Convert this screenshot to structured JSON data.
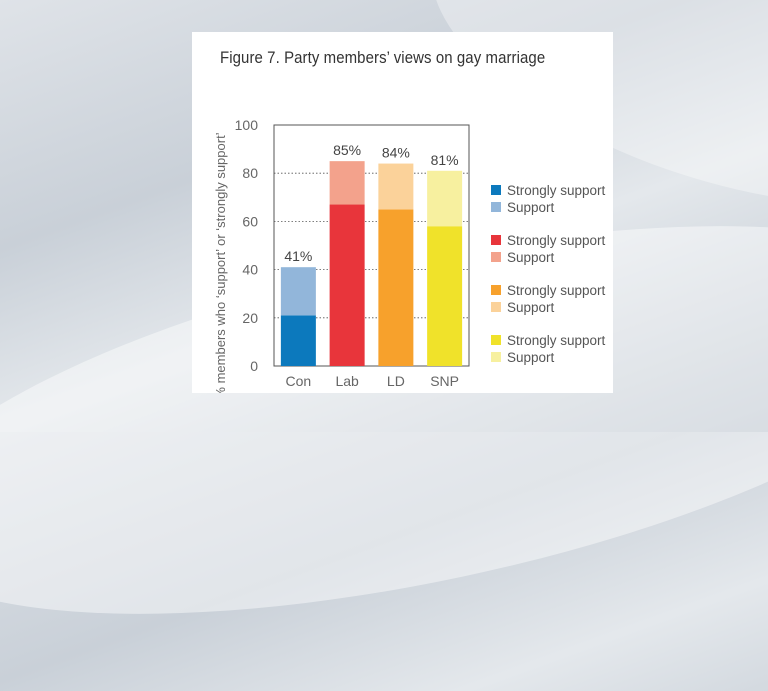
{
  "figure": {
    "title": "Figure 7.  Party members’ views on gay marriage"
  },
  "chart_data": {
    "type": "bar",
    "stacked": true,
    "categories": [
      "Con",
      "Lab",
      "LD",
      "SNP"
    ],
    "ylabel": "% members who ‘support’ or ‘strongly support’",
    "ylim": [
      0,
      100
    ],
    "yticks": [
      0,
      20,
      40,
      60,
      80,
      100
    ],
    "grid": true,
    "totals_labels": [
      "41%",
      "85%",
      "84%",
      "81%"
    ],
    "bars": [
      {
        "category": "Con",
        "strongly_support": 21,
        "support": 20,
        "total": 41,
        "colors": {
          "strongly": "#0c79bd",
          "support": "#92b6da"
        }
      },
      {
        "category": "Lab",
        "strongly_support": 67,
        "support": 18,
        "total": 85,
        "colors": {
          "strongly": "#e8353b",
          "support": "#f3a28c"
        }
      },
      {
        "category": "LD",
        "strongly_support": 65,
        "support": 19,
        "total": 84,
        "colors": {
          "strongly": "#f7a12c",
          "support": "#fbd29a"
        }
      },
      {
        "category": "SNP",
        "strongly_support": 58,
        "support": 23,
        "total": 81,
        "colors": {
          "strongly": "#f0e22a",
          "support": "#f7f09f"
        }
      }
    ],
    "legend_position": "right",
    "legend": [
      {
        "label": "Strongly support",
        "color": "#0c79bd"
      },
      {
        "label": "Support",
        "color": "#92b6da"
      },
      {
        "label": "Strongly support",
        "color": "#e8353b"
      },
      {
        "label": "Support",
        "color": "#f3a28c"
      },
      {
        "label": "Strongly support",
        "color": "#f7a12c"
      },
      {
        "label": "Support",
        "color": "#fbd29a"
      },
      {
        "label": "Strongly support",
        "color": "#f0e22a"
      },
      {
        "label": "Support",
        "color": "#f7f09f"
      }
    ]
  }
}
